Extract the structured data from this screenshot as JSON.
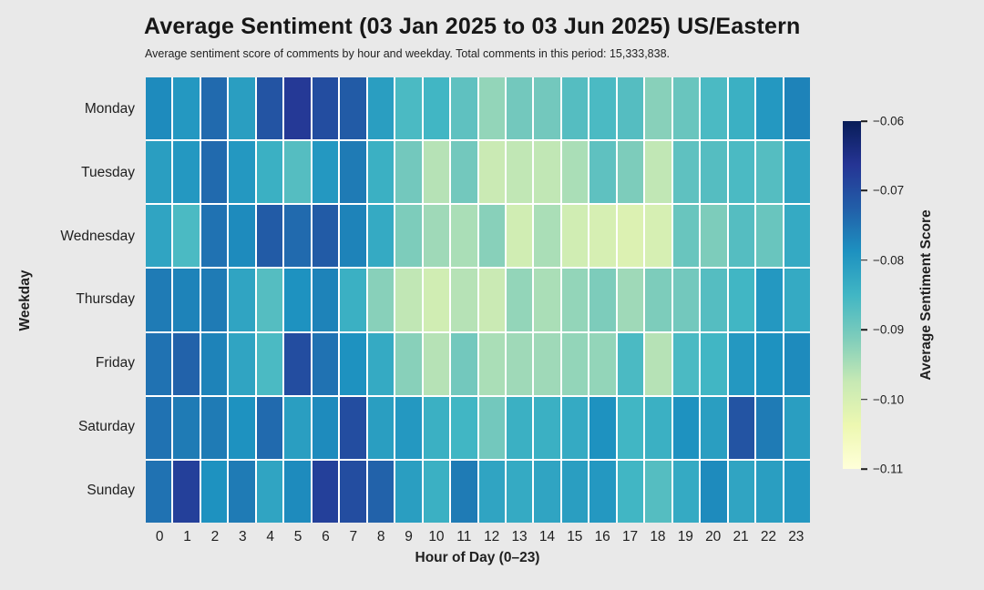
{
  "header": {
    "title": "Average Sentiment (03 Jan 2025 to 03 Jun 2025) US/Eastern",
    "subtitle": "Average sentiment score of comments by hour and weekday. Total comments in this period: 15,333,838."
  },
  "chart_data": {
    "type": "heatmap",
    "title": "Average Sentiment (03 Jan 2025 to 03 Jun 2025) US/Eastern",
    "subtitle": "Average sentiment score of comments by hour and weekday. Total comments in this period: 15,333,838.",
    "xlabel": "Hour of Day (0–23)",
    "ylabel": "Weekday",
    "x_labels": [
      "0",
      "1",
      "2",
      "3",
      "4",
      "5",
      "6",
      "7",
      "8",
      "9",
      "10",
      "11",
      "12",
      "13",
      "14",
      "15",
      "16",
      "17",
      "18",
      "19",
      "20",
      "21",
      "22",
      "23"
    ],
    "y_labels": [
      "Monday",
      "Tuesday",
      "Wednesday",
      "Thursday",
      "Friday",
      "Saturday",
      "Sunday"
    ],
    "colorbar": {
      "label": "Average Sentiment Score",
      "tick_labels": [
        "−0.06",
        "−0.07",
        "−0.08",
        "−0.09",
        "−0.10",
        "−0.11"
      ],
      "tick_values": [
        -0.06,
        -0.07,
        -0.08,
        -0.09,
        -0.1,
        -0.11
      ],
      "vmin": -0.11,
      "vmax": -0.06,
      "colormap": "YlGnBu",
      "colormap_stops": [
        "#ffffd9",
        "#edf8b1",
        "#c7e9b4",
        "#7fcdbb",
        "#41b6c4",
        "#1d91c0",
        "#225ea8",
        "#253494",
        "#081d58"
      ]
    },
    "cell_gap_color": "#ffffff",
    "background_color": "#e9e9e9",
    "values": [
      [
        -0.078,
        -0.08,
        -0.074,
        -0.081,
        -0.071,
        -0.067,
        -0.07,
        -0.072,
        -0.081,
        -0.086,
        -0.085,
        -0.088,
        -0.093,
        -0.09,
        -0.09,
        -0.087,
        -0.086,
        -0.087,
        -0.092,
        -0.089,
        -0.086,
        -0.084,
        -0.08,
        -0.077
      ],
      [
        -0.081,
        -0.08,
        -0.074,
        -0.08,
        -0.084,
        -0.087,
        -0.08,
        -0.076,
        -0.084,
        -0.09,
        -0.096,
        -0.09,
        -0.098,
        -0.097,
        -0.097,
        -0.095,
        -0.088,
        -0.091,
        -0.097,
        -0.088,
        -0.087,
        -0.086,
        -0.087,
        -0.082
      ],
      [
        -0.082,
        -0.086,
        -0.075,
        -0.078,
        -0.072,
        -0.074,
        -0.072,
        -0.077,
        -0.083,
        -0.091,
        -0.094,
        -0.095,
        -0.092,
        -0.099,
        -0.095,
        -0.099,
        -0.1,
        -0.101,
        -0.1,
        -0.089,
        -0.091,
        -0.087,
        -0.089,
        -0.083
      ],
      [
        -0.076,
        -0.077,
        -0.076,
        -0.082,
        -0.087,
        -0.079,
        -0.077,
        -0.084,
        -0.092,
        -0.097,
        -0.099,
        -0.096,
        -0.098,
        -0.093,
        -0.095,
        -0.093,
        -0.091,
        -0.094,
        -0.091,
        -0.09,
        -0.087,
        -0.085,
        -0.08,
        -0.083
      ],
      [
        -0.075,
        -0.073,
        -0.077,
        -0.082,
        -0.086,
        -0.07,
        -0.075,
        -0.079,
        -0.083,
        -0.092,
        -0.096,
        -0.09,
        -0.095,
        -0.094,
        -0.094,
        -0.093,
        -0.093,
        -0.086,
        -0.096,
        -0.086,
        -0.085,
        -0.08,
        -0.079,
        -0.078
      ],
      [
        -0.075,
        -0.076,
        -0.076,
        -0.079,
        -0.074,
        -0.081,
        -0.078,
        -0.07,
        -0.081,
        -0.08,
        -0.084,
        -0.085,
        -0.09,
        -0.084,
        -0.084,
        -0.083,
        -0.079,
        -0.085,
        -0.084,
        -0.079,
        -0.081,
        -0.071,
        -0.076,
        -0.081
      ],
      [
        -0.075,
        -0.068,
        -0.079,
        -0.076,
        -0.082,
        -0.078,
        -0.068,
        -0.07,
        -0.073,
        -0.081,
        -0.084,
        -0.076,
        -0.082,
        -0.083,
        -0.082,
        -0.081,
        -0.08,
        -0.085,
        -0.087,
        -0.083,
        -0.078,
        -0.082,
        -0.081,
        -0.08
      ]
    ]
  }
}
